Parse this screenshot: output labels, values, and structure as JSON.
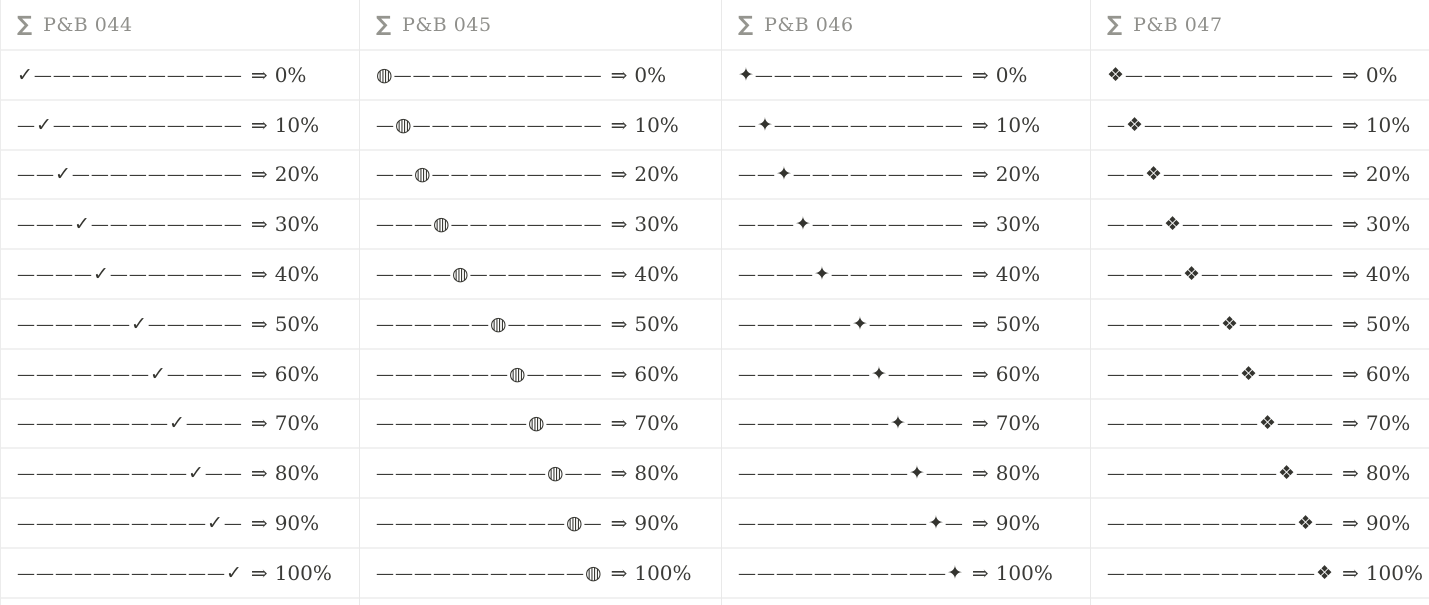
{
  "track": {
    "dash_char": "—",
    "total_dashes": 11,
    "arrow_char": "⇒"
  },
  "colors": {
    "background": "#ffffff",
    "text": "#3a3a37",
    "header_text": "#8f8f8b",
    "icon": "#95958f",
    "row_border": "#f1f1f1",
    "column_border": "#e9e9e9"
  },
  "panels": [
    {
      "icon_char": "∑",
      "title": "P&B 044",
      "marker_char": "✓",
      "marker_name": "check-marker",
      "rows": [
        {
          "percent": 0,
          "value_label": "0%"
        },
        {
          "percent": 10,
          "value_label": "10%"
        },
        {
          "percent": 20,
          "value_label": "20%"
        },
        {
          "percent": 30,
          "value_label": "30%"
        },
        {
          "percent": 40,
          "value_label": "40%"
        },
        {
          "percent": 50,
          "value_label": "50%"
        },
        {
          "percent": 60,
          "value_label": "60%"
        },
        {
          "percent": 70,
          "value_label": "70%"
        },
        {
          "percent": 80,
          "value_label": "80%"
        },
        {
          "percent": 90,
          "value_label": "90%"
        },
        {
          "percent": 100,
          "value_label": "100%"
        }
      ]
    },
    {
      "icon_char": "∑",
      "title": "P&B 045",
      "marker_char": "◍",
      "marker_name": "striped-circle-marker",
      "rows": [
        {
          "percent": 0,
          "value_label": "0%"
        },
        {
          "percent": 10,
          "value_label": "10%"
        },
        {
          "percent": 20,
          "value_label": "20%"
        },
        {
          "percent": 30,
          "value_label": "30%"
        },
        {
          "percent": 40,
          "value_label": "40%"
        },
        {
          "percent": 50,
          "value_label": "50%"
        },
        {
          "percent": 60,
          "value_label": "60%"
        },
        {
          "percent": 70,
          "value_label": "70%"
        },
        {
          "percent": 80,
          "value_label": "80%"
        },
        {
          "percent": 90,
          "value_label": "90%"
        },
        {
          "percent": 100,
          "value_label": "100%"
        }
      ]
    },
    {
      "icon_char": "∑",
      "title": "P&B 046",
      "marker_char": "✦",
      "marker_name": "four-pointed-star-marker",
      "rows": [
        {
          "percent": 0,
          "value_label": "0%"
        },
        {
          "percent": 10,
          "value_label": "10%"
        },
        {
          "percent": 20,
          "value_label": "20%"
        },
        {
          "percent": 30,
          "value_label": "30%"
        },
        {
          "percent": 40,
          "value_label": "40%"
        },
        {
          "percent": 50,
          "value_label": "50%"
        },
        {
          "percent": 60,
          "value_label": "60%"
        },
        {
          "percent": 70,
          "value_label": "70%"
        },
        {
          "percent": 80,
          "value_label": "80%"
        },
        {
          "percent": 90,
          "value_label": "90%"
        },
        {
          "percent": 100,
          "value_label": "100%"
        }
      ]
    },
    {
      "icon_char": "∑",
      "title": "P&B 047",
      "marker_char": "❖",
      "marker_name": "diamond-cluster-marker",
      "rows": [
        {
          "percent": 0,
          "value_label": "0%"
        },
        {
          "percent": 10,
          "value_label": "10%"
        },
        {
          "percent": 20,
          "value_label": "20%"
        },
        {
          "percent": 30,
          "value_label": "30%"
        },
        {
          "percent": 40,
          "value_label": "40%"
        },
        {
          "percent": 50,
          "value_label": "50%"
        },
        {
          "percent": 60,
          "value_label": "60%"
        },
        {
          "percent": 70,
          "value_label": "70%"
        },
        {
          "percent": 80,
          "value_label": "80%"
        },
        {
          "percent": 90,
          "value_label": "90%"
        },
        {
          "percent": 100,
          "value_label": "100%"
        }
      ]
    }
  ]
}
